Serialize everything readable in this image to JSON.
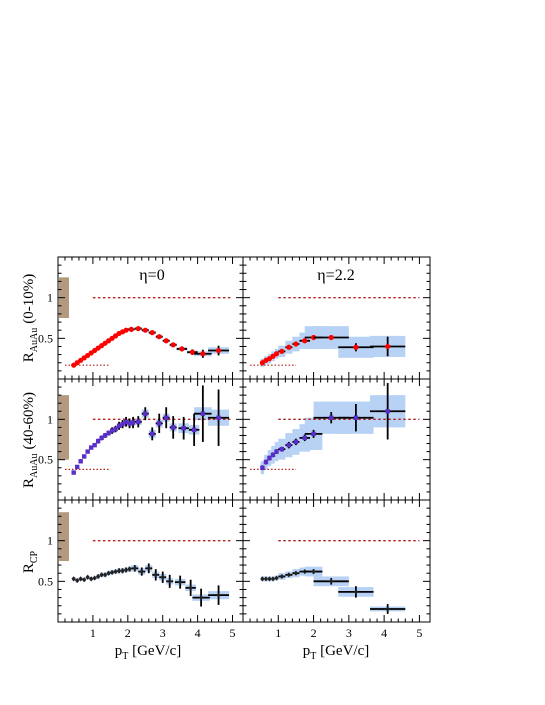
{
  "figure": {
    "panel_titles": [
      "η=0",
      "η=2.2"
    ],
    "row_ylabels": [
      {
        "main": "R",
        "sub": "AuAu",
        "suffix": "(0-10%)"
      },
      {
        "main": "R",
        "sub": "AuAu",
        "suffix": "(40-60%)"
      },
      {
        "main": "R",
        "sub": "CP",
        "suffix": ""
      }
    ],
    "xlabel": {
      "main": "p",
      "sub": "T",
      "suffix": " [GeV/c]"
    }
  },
  "colors": {
    "frame": "#000000",
    "band": "#b7d2f4",
    "reference_line": "#b22222",
    "scale_box": "#b39a7e",
    "marker_central": "#ff0000",
    "marker_peripheral": "#5a2ec8",
    "marker_rcp": "#222222"
  },
  "chart_data": [
    {
      "type": "scatter",
      "row": "R_AuAu (0-10%)",
      "column": "η=0",
      "xlim": [
        0,
        5.3
      ],
      "ylim": [
        0,
        1.5
      ],
      "x_ticks": [
        "1",
        "2",
        "3",
        "4",
        "5"
      ],
      "y_ticks": [
        "0.5",
        "1"
      ],
      "reference_y": 1.0,
      "low_reference_y": 0.17,
      "scale_uncertainty": [
        0.75,
        1.25
      ],
      "marker": "circle",
      "marker_color": "red",
      "series": [
        {
          "x": [
            0.45,
            0.55,
            0.65,
            0.75,
            0.85,
            0.95,
            1.05,
            1.15,
            1.25,
            1.35,
            1.45,
            1.55,
            1.65,
            1.75,
            1.85,
            1.95,
            2.1,
            2.3,
            2.5,
            2.7,
            2.9,
            3.1,
            3.3,
            3.55,
            3.85,
            4.15,
            4.6
          ],
          "y": [
            0.17,
            0.2,
            0.23,
            0.26,
            0.29,
            0.32,
            0.35,
            0.38,
            0.41,
            0.44,
            0.47,
            0.5,
            0.53,
            0.56,
            0.58,
            0.6,
            0.61,
            0.62,
            0.6,
            0.57,
            0.52,
            0.47,
            0.42,
            0.37,
            0.33,
            0.31,
            0.35
          ],
          "y_err": [
            0.01,
            0.01,
            0.01,
            0.01,
            0.01,
            0.01,
            0.01,
            0.01,
            0.01,
            0.01,
            0.01,
            0.01,
            0.01,
            0.015,
            0.015,
            0.015,
            0.02,
            0.02,
            0.02,
            0.02,
            0.025,
            0.025,
            0.025,
            0.03,
            0.035,
            0.05,
            0.06
          ],
          "x_width": [
            0.05,
            0.05,
            0.05,
            0.05,
            0.05,
            0.05,
            0.05,
            0.05,
            0.05,
            0.05,
            0.05,
            0.05,
            0.05,
            0.05,
            0.05,
            0.05,
            0.1,
            0.1,
            0.1,
            0.1,
            0.1,
            0.1,
            0.1,
            0.15,
            0.15,
            0.25,
            0.3
          ],
          "sys_err": [
            0.01,
            0.01,
            0.01,
            0.01,
            0.01,
            0.01,
            0.01,
            0.01,
            0.01,
            0.01,
            0.01,
            0.01,
            0.01,
            0.01,
            0.015,
            0.015,
            0.015,
            0.02,
            0.02,
            0.02,
            0.02,
            0.02,
            0.02,
            0.02,
            0.02,
            0.03,
            0.04
          ]
        }
      ]
    },
    {
      "type": "scatter",
      "row": "R_AuAu (0-10%)",
      "column": "η=2.2",
      "xlim": [
        0,
        5.3
      ],
      "ylim": [
        0,
        1.5
      ],
      "x_ticks": [
        "1",
        "2",
        "3",
        "4",
        "5"
      ],
      "y_ticks": [
        "0.5",
        "1"
      ],
      "reference_y": 1.0,
      "low_reference_y": 0.17,
      "marker": "circle",
      "marker_color": "red",
      "series": [
        {
          "x": [
            0.55,
            0.65,
            0.75,
            0.85,
            0.95,
            1.1,
            1.3,
            1.5,
            1.75,
            2.0,
            2.5,
            3.2,
            4.1
          ],
          "y": [
            0.2,
            0.23,
            0.25,
            0.28,
            0.31,
            0.34,
            0.39,
            0.43,
            0.47,
            0.51,
            0.51,
            0.39,
            0.4
          ],
          "y_err": [
            0.01,
            0.01,
            0.01,
            0.01,
            0.01,
            0.01,
            0.015,
            0.015,
            0.02,
            0.02,
            0.03,
            0.05,
            0.12
          ],
          "x_width": [
            0.05,
            0.05,
            0.05,
            0.05,
            0.05,
            0.1,
            0.1,
            0.1,
            0.15,
            0.25,
            0.5,
            0.5,
            0.5
          ],
          "sys_err": [
            0.05,
            0.05,
            0.06,
            0.06,
            0.06,
            0.07,
            0.08,
            0.09,
            0.1,
            0.14,
            0.14,
            0.13,
            0.13
          ]
        }
      ]
    },
    {
      "type": "scatter",
      "row": "R_AuAu (40-60%)",
      "column": "η=0",
      "xlim": [
        0,
        5.3
      ],
      "ylim": [
        0,
        1.5
      ],
      "x_ticks": [
        "1",
        "2",
        "3",
        "4",
        "5"
      ],
      "y_ticks": [
        "0.5",
        "1"
      ],
      "reference_y": 1.0,
      "low_reference_y": 0.38,
      "scale_uncertainty": [
        0.5,
        1.3
      ],
      "marker": "square",
      "marker_color": "purple",
      "series": [
        {
          "x": [
            0.45,
            0.55,
            0.65,
            0.75,
            0.85,
            0.95,
            1.05,
            1.15,
            1.25,
            1.35,
            1.45,
            1.55,
            1.65,
            1.75,
            1.85,
            1.95,
            2.05,
            2.15,
            2.3,
            2.5,
            2.7,
            2.9,
            3.1,
            3.3,
            3.6,
            3.9,
            4.15,
            4.6
          ],
          "y": [
            0.34,
            0.41,
            0.48,
            0.54,
            0.6,
            0.65,
            0.68,
            0.73,
            0.77,
            0.8,
            0.83,
            0.86,
            0.88,
            0.92,
            0.94,
            0.97,
            0.95,
            0.96,
            0.97,
            1.07,
            0.82,
            0.95,
            1.02,
            0.9,
            0.89,
            0.87,
            1.07,
            1.02
          ],
          "y_err": [
            0.02,
            0.02,
            0.02,
            0.02,
            0.02,
            0.02,
            0.02,
            0.03,
            0.03,
            0.03,
            0.03,
            0.04,
            0.04,
            0.05,
            0.05,
            0.06,
            0.06,
            0.07,
            0.07,
            0.08,
            0.08,
            0.12,
            0.13,
            0.14,
            0.14,
            0.2,
            0.35,
            0.35
          ],
          "x_width": [
            0.05,
            0.05,
            0.05,
            0.05,
            0.05,
            0.05,
            0.05,
            0.05,
            0.05,
            0.05,
            0.05,
            0.05,
            0.05,
            0.05,
            0.05,
            0.05,
            0.05,
            0.05,
            0.1,
            0.1,
            0.1,
            0.1,
            0.1,
            0.1,
            0.15,
            0.15,
            0.25,
            0.3
          ],
          "sys_err": [
            0.02,
            0.02,
            0.02,
            0.02,
            0.02,
            0.02,
            0.02,
            0.02,
            0.02,
            0.02,
            0.03,
            0.03,
            0.03,
            0.03,
            0.03,
            0.03,
            0.04,
            0.04,
            0.04,
            0.05,
            0.05,
            0.05,
            0.05,
            0.05,
            0.06,
            0.06,
            0.08,
            0.1
          ]
        }
      ]
    },
    {
      "type": "scatter",
      "row": "R_AuAu (40-60%)",
      "column": "η=2.2",
      "xlim": [
        0,
        5.3
      ],
      "ylim": [
        0,
        1.5
      ],
      "x_ticks": [
        "1",
        "2",
        "3",
        "4",
        "5"
      ],
      "y_ticks": [
        "0.5",
        "1"
      ],
      "reference_y": 1.0,
      "low_reference_y": 0.38,
      "marker": "square",
      "marker_color": "purple",
      "series": [
        {
          "x": [
            0.55,
            0.65,
            0.75,
            0.85,
            0.95,
            1.1,
            1.3,
            1.5,
            1.75,
            2.0,
            2.5,
            3.2,
            4.1
          ],
          "y": [
            0.4,
            0.47,
            0.52,
            0.56,
            0.6,
            0.63,
            0.68,
            0.72,
            0.77,
            0.82,
            1.02,
            1.02,
            1.1
          ],
          "y_err": [
            0.03,
            0.03,
            0.03,
            0.03,
            0.03,
            0.03,
            0.04,
            0.04,
            0.04,
            0.05,
            0.07,
            0.17,
            0.35
          ],
          "x_width": [
            0.05,
            0.05,
            0.05,
            0.05,
            0.05,
            0.1,
            0.1,
            0.1,
            0.15,
            0.25,
            0.5,
            0.5,
            0.5
          ],
          "sys_err": [
            0.08,
            0.09,
            0.1,
            0.11,
            0.12,
            0.13,
            0.15,
            0.16,
            0.17,
            0.2,
            0.2,
            0.2,
            0.2
          ]
        }
      ]
    },
    {
      "type": "scatter",
      "row": "R_CP",
      "column": "η=0",
      "xlim": [
        0,
        5.3
      ],
      "ylim": [
        0,
        1.5
      ],
      "x_ticks": [
        "1",
        "2",
        "3",
        "4",
        "5"
      ],
      "y_ticks": [
        "0.5",
        "1"
      ],
      "reference_y": 1.0,
      "scale_uncertainty": [
        0.75,
        1.35
      ],
      "marker": "diamond",
      "marker_color": "black",
      "series": [
        {
          "x": [
            0.45,
            0.55,
            0.65,
            0.75,
            0.85,
            0.95,
            1.05,
            1.15,
            1.25,
            1.35,
            1.45,
            1.55,
            1.65,
            1.75,
            1.85,
            1.95,
            2.05,
            2.2,
            2.4,
            2.6,
            2.8,
            3.0,
            3.2,
            3.5,
            3.8,
            4.1,
            4.6
          ],
          "y": [
            0.53,
            0.51,
            0.53,
            0.52,
            0.55,
            0.53,
            0.54,
            0.56,
            0.58,
            0.58,
            0.6,
            0.61,
            0.62,
            0.63,
            0.63,
            0.64,
            0.65,
            0.66,
            0.62,
            0.66,
            0.58,
            0.55,
            0.5,
            0.49,
            0.42,
            0.3,
            0.33
          ],
          "y_err": [
            0.02,
            0.02,
            0.02,
            0.02,
            0.02,
            0.02,
            0.02,
            0.02,
            0.02,
            0.02,
            0.02,
            0.02,
            0.02,
            0.03,
            0.03,
            0.03,
            0.03,
            0.04,
            0.05,
            0.06,
            0.07,
            0.07,
            0.08,
            0.08,
            0.1,
            0.11,
            0.12
          ],
          "x_width": [
            0.05,
            0.05,
            0.05,
            0.05,
            0.05,
            0.05,
            0.05,
            0.05,
            0.05,
            0.05,
            0.05,
            0.05,
            0.05,
            0.05,
            0.05,
            0.05,
            0.05,
            0.1,
            0.1,
            0.1,
            0.1,
            0.1,
            0.1,
            0.15,
            0.15,
            0.25,
            0.3
          ],
          "sys_err": [
            0.02,
            0.02,
            0.02,
            0.02,
            0.02,
            0.02,
            0.02,
            0.03,
            0.03,
            0.03,
            0.03,
            0.03,
            0.03,
            0.03,
            0.03,
            0.03,
            0.03,
            0.04,
            0.04,
            0.04,
            0.04,
            0.04,
            0.04,
            0.04,
            0.04,
            0.04,
            0.05
          ]
        }
      ]
    },
    {
      "type": "scatter",
      "row": "R_CP",
      "column": "η=2.2",
      "xlim": [
        0,
        5.3
      ],
      "ylim": [
        0,
        1.5
      ],
      "x_ticks": [
        "1",
        "2",
        "3",
        "4",
        "5"
      ],
      "y_ticks": [
        "0.5",
        "1"
      ],
      "reference_y": 1.0,
      "marker": "diamond",
      "marker_color": "black",
      "series": [
        {
          "x": [
            0.55,
            0.65,
            0.75,
            0.85,
            0.95,
            1.1,
            1.3,
            1.5,
            1.75,
            2.0,
            2.5,
            3.2,
            4.1
          ],
          "y": [
            0.53,
            0.53,
            0.53,
            0.53,
            0.54,
            0.56,
            0.58,
            0.6,
            0.62,
            0.62,
            0.5,
            0.37,
            0.16
          ],
          "y_err": [
            0.01,
            0.01,
            0.01,
            0.01,
            0.01,
            0.01,
            0.01,
            0.02,
            0.02,
            0.03,
            0.04,
            0.07,
            0.06
          ],
          "x_width": [
            0.05,
            0.05,
            0.05,
            0.05,
            0.05,
            0.1,
            0.1,
            0.1,
            0.15,
            0.25,
            0.5,
            0.5,
            0.5
          ],
          "sys_err": [
            0.03,
            0.03,
            0.03,
            0.03,
            0.03,
            0.04,
            0.04,
            0.05,
            0.05,
            0.06,
            0.06,
            0.06,
            0.03
          ]
        }
      ]
    }
  ]
}
